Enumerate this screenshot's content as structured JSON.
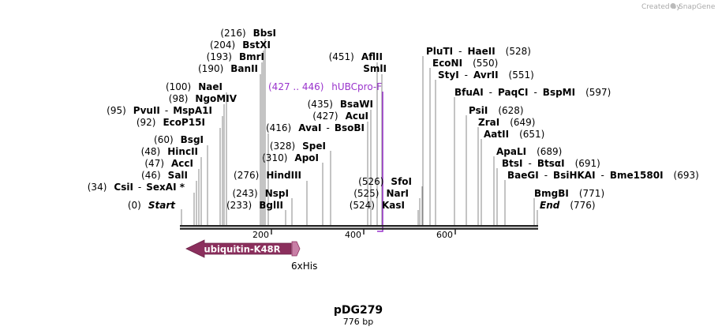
{
  "header": {
    "credit": "Created by",
    "brand": "SnapGene"
  },
  "plasmid": {
    "name": "pDG279",
    "size_label": "776 bp",
    "length": 776
  },
  "axis": {
    "ticks": [
      "200",
      "400",
      "600"
    ],
    "tick_positions": [
      200,
      400,
      600
    ]
  },
  "colors": {
    "feature": "#8b2f5d",
    "his": "#c87fa6",
    "primer": "#9933cc",
    "line": "#888888",
    "backbone": "#222222"
  },
  "sites": [
    {
      "pos": "(216)",
      "parts": [
        "BbsI"
      ]
    },
    {
      "pos": "(204)",
      "parts": [
        "BstXI"
      ]
    },
    {
      "pos": "(193)",
      "parts": [
        "BmrI"
      ]
    },
    {
      "pos": "(190)",
      "parts": [
        "BanII"
      ]
    },
    {
      "pos": "(100)",
      "parts": [
        "NaeI"
      ]
    },
    {
      "pos": "(98)",
      "parts": [
        "NgoMIV"
      ]
    },
    {
      "pos": "(95)",
      "parts": [
        "PvuII",
        "MspA1I"
      ]
    },
    {
      "pos": "(92)",
      "parts": [
        "EcoP15I"
      ]
    },
    {
      "pos": "(60)",
      "parts": [
        "BsgI"
      ]
    },
    {
      "pos": "(48)",
      "parts": [
        "HincII"
      ]
    },
    {
      "pos": "(47)",
      "parts": [
        "AccI"
      ]
    },
    {
      "pos": "(46)",
      "parts": [
        "SalI"
      ]
    },
    {
      "pos": "(34)",
      "parts": [
        "CsiI",
        "SexAI *"
      ]
    },
    {
      "pos": "(0)",
      "parts": [
        "Start"
      ]
    },
    {
      "pos": "(416)",
      "parts": [
        "AvaI",
        "BsoBI"
      ]
    },
    {
      "pos": "(328)",
      "parts": [
        "SpeI"
      ]
    },
    {
      "pos": "(310)",
      "parts": [
        "ApoI"
      ]
    },
    {
      "pos": "(276)",
      "parts": [
        "HindIII"
      ]
    },
    {
      "pos": "(243)",
      "parts": [
        "NspI"
      ]
    },
    {
      "pos": "(233)",
      "parts": [
        "BglII"
      ]
    },
    {
      "pos": "(451)",
      "parts": [
        "AflII"
      ]
    },
    {
      "pos": "",
      "parts": [
        "SmlI"
      ]
    },
    {
      "pos": "(435)",
      "parts": [
        "BsaWI"
      ]
    },
    {
      "pos": "(427)",
      "parts": [
        "AcuI"
      ]
    },
    {
      "pos": "(526)",
      "parts": [
        "SfoI"
      ]
    },
    {
      "pos": "(525)",
      "parts": [
        "NarI"
      ]
    },
    {
      "pos": "(524)",
      "parts": [
        "KasI"
      ]
    },
    {
      "pos": "(528)",
      "parts": [
        "PluTI",
        "HaeII"
      ]
    },
    {
      "pos": "(550)",
      "parts": [
        "EcoNI"
      ]
    },
    {
      "pos": "(551)",
      "parts": [
        "StyI",
        "AvrII"
      ]
    },
    {
      "pos": "(597)",
      "parts": [
        "BfuAI",
        "PaqCI",
        "BspMI"
      ]
    },
    {
      "pos": "(628)",
      "parts": [
        "PsiI"
      ]
    },
    {
      "pos": "(649)",
      "parts": [
        "ZraI"
      ]
    },
    {
      "pos": "(651)",
      "parts": [
        "AatII"
      ]
    },
    {
      "pos": "(689)",
      "parts": [
        "ApaLI"
      ]
    },
    {
      "pos": "(691)",
      "parts": [
        "BtsI",
        "BtsαI"
      ]
    },
    {
      "pos": "(693)",
      "parts": [
        "BaeGI",
        "BsiHKAI",
        "Bme1580I"
      ]
    },
    {
      "pos": "(771)",
      "parts": [
        "BmgBI"
      ]
    },
    {
      "pos": "(776)",
      "parts": [
        "End"
      ]
    }
  ],
  "primer": {
    "range": "(427 .. 446)",
    "name": "hUBCpro-F"
  },
  "features": [
    {
      "name": "ubiquitin-K48R"
    },
    {
      "name": "6xHis"
    }
  ]
}
